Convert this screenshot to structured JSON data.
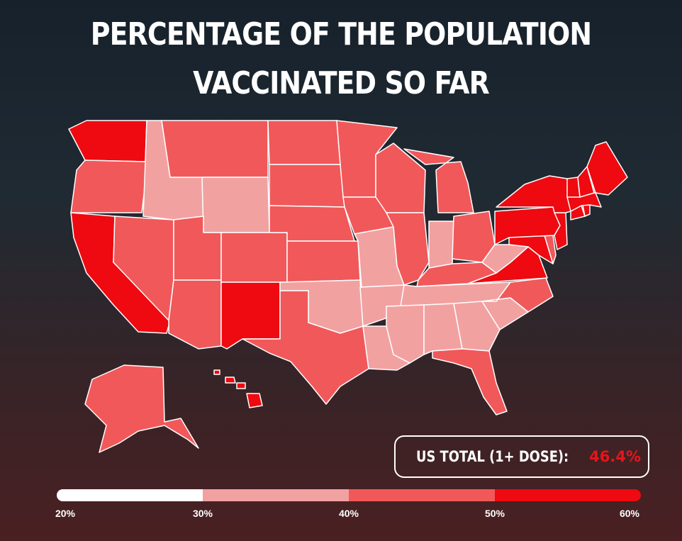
{
  "title": {
    "line1": "PERCENTAGE OF THE POPULATION",
    "line2": "VACCINATED SO FAR"
  },
  "total": {
    "label": "US TOTAL (1+ DOSE):",
    "value": "46.4%"
  },
  "legend": {
    "ticks": [
      "20%",
      "30%",
      "40%",
      "50%",
      "60%"
    ],
    "bins": [
      {
        "range": "20%-30%",
        "color": "#ffffff"
      },
      {
        "range": "30%-40%",
        "color": "#f2a1a1"
      },
      {
        "range": "40%-50%",
        "color": "#f1585a"
      },
      {
        "range": "50%-60%",
        "color": "#ee0a10"
      }
    ]
  },
  "colors": {
    "tier_30_40": "#f2a1a1",
    "tier_40_50": "#f1585a",
    "tier_50_60": "#ee0a10",
    "state_border": "#ffffff",
    "highlight_text": "#e8141b"
  },
  "states": {
    "WA": "50-60",
    "OR": "40-50",
    "CA": "50-60",
    "NV": "40-50",
    "ID": "30-40",
    "MT": "40-50",
    "WY": "30-40",
    "UT": "40-50",
    "AZ": "40-50",
    "NM": "50-60",
    "CO": "40-50",
    "ND": "40-50",
    "SD": "40-50",
    "NE": "40-50",
    "KS": "40-50",
    "OK": "30-40",
    "TX": "40-50",
    "MN": "40-50",
    "IA": "40-50",
    "MO": "30-40",
    "AR": "30-40",
    "LA": "30-40",
    "WI": "40-50",
    "IL": "40-50",
    "MI": "40-50",
    "IN": "30-40",
    "OH": "40-50",
    "KY": "40-50",
    "TN": "30-40",
    "MS": "30-40",
    "AL": "30-40",
    "GA": "30-40",
    "FL": "40-50",
    "SC": "30-40",
    "NC": "40-50",
    "VA": "50-60",
    "WV": "30-40",
    "PA": "50-60",
    "NY": "50-60",
    "VT": "50-60",
    "NH": "50-60",
    "ME": "50-60",
    "MA": "50-60",
    "CT": "50-60",
    "RI": "50-60",
    "NJ": "50-60",
    "DE": "40-50",
    "MD": "50-60",
    "AK": "40-50",
    "HI": "50-60"
  }
}
